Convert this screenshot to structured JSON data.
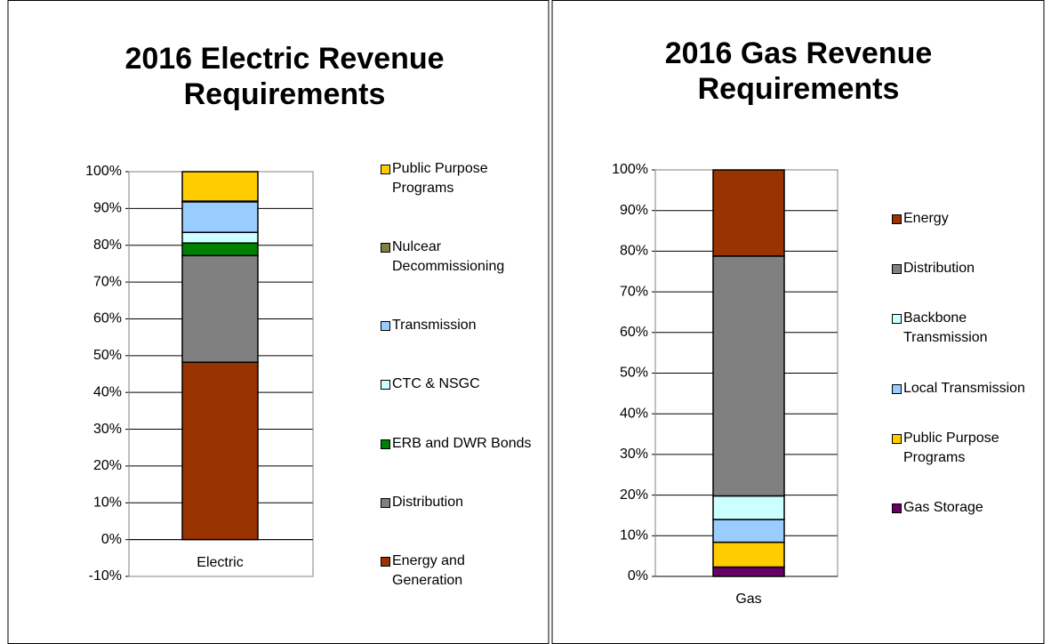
{
  "chart_data": [
    {
      "type": "bar",
      "stacked": true,
      "title": "2016 Electric Revenue Requirements",
      "categories": [
        "Electric"
      ],
      "ylim": [
        -10,
        100
      ],
      "yticks": [
        {
          "value": -10,
          "label": "-10%"
        },
        {
          "value": 0,
          "label": "0%"
        },
        {
          "value": 10,
          "label": "10%"
        },
        {
          "value": 20,
          "label": "20%"
        },
        {
          "value": 30,
          "label": "30%"
        },
        {
          "value": 40,
          "label": "40%"
        },
        {
          "value": 50,
          "label": "50%"
        },
        {
          "value": 60,
          "label": "60%"
        },
        {
          "value": 70,
          "label": "70%"
        },
        {
          "value": 80,
          "label": "80%"
        },
        {
          "value": 90,
          "label": "90%"
        },
        {
          "value": 100,
          "label": "100%"
        }
      ],
      "grid": true,
      "series": [
        {
          "name": "Energy and Generation",
          "color": "#993300",
          "values": [
            48.2
          ]
        },
        {
          "name": "Distribution",
          "color": "#808080",
          "values": [
            29
          ]
        },
        {
          "name": "ERB and DWR Bonds",
          "color": "#008000",
          "values": [
            3.4
          ]
        },
        {
          "name": "CTC & NSGC",
          "color": "#ccffff",
          "values": [
            2.9
          ]
        },
        {
          "name": "Transmission",
          "color": "#99ccff",
          "values": [
            8.3
          ]
        },
        {
          "name": "Nulcear Decommissioning",
          "color": "#808040",
          "values": [
            0.2
          ]
        },
        {
          "name": "Public Purpose Programs",
          "color": "#ffcc00",
          "values": [
            8.0
          ]
        }
      ]
    },
    {
      "type": "bar",
      "stacked": true,
      "title": "2016 Gas Revenue Requirements",
      "categories": [
        "Gas"
      ],
      "ylim": [
        0,
        100
      ],
      "yticks": [
        {
          "value": 0,
          "label": "0%"
        },
        {
          "value": 10,
          "label": "10%"
        },
        {
          "value": 20,
          "label": "20%"
        },
        {
          "value": 30,
          "label": "30%"
        },
        {
          "value": 40,
          "label": "40%"
        },
        {
          "value": 50,
          "label": "50%"
        },
        {
          "value": 60,
          "label": "60%"
        },
        {
          "value": 70,
          "label": "70%"
        },
        {
          "value": 80,
          "label": "80%"
        },
        {
          "value": 90,
          "label": "90%"
        },
        {
          "value": 100,
          "label": "100%"
        }
      ],
      "grid": true,
      "series": [
        {
          "name": "Gas Storage",
          "color": "#660066",
          "values": [
            2.3
          ]
        },
        {
          "name": "Public Purpose Programs",
          "color": "#ffcc00",
          "values": [
            6.1
          ]
        },
        {
          "name": "Local Transmission",
          "color": "#99ccff",
          "values": [
            5.6
          ]
        },
        {
          "name": "Backbone Transmission",
          "color": "#ccffff",
          "values": [
            5.8
          ]
        },
        {
          "name": "Distribution",
          "color": "#808080",
          "values": [
            59
          ]
        },
        {
          "name": "Energy",
          "color": "#993300",
          "values": [
            21.2
          ]
        }
      ]
    }
  ]
}
